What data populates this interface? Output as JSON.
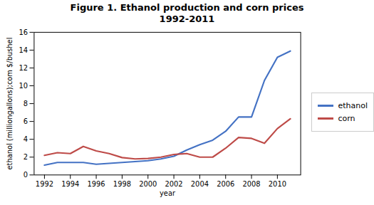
{
  "chart_data": {
    "type": "line",
    "title": "Figure 1. Ethanol production and corn prices",
    "subtitle": "1992-2011",
    "xlabel": "year",
    "ylabel": "ethanol (milliongallons);com $/bushel",
    "x": [
      1992,
      1993,
      1994,
      1995,
      1996,
      1997,
      1998,
      1999,
      2000,
      2001,
      2002,
      2003,
      2004,
      2005,
      2006,
      2007,
      2008,
      2009,
      2010,
      2011
    ],
    "series": [
      {
        "name": "ethanol",
        "color": "#4472C4",
        "values": [
          1.1,
          1.4,
          1.4,
          1.4,
          1.2,
          1.3,
          1.4,
          1.5,
          1.6,
          1.8,
          2.1,
          2.8,
          3.4,
          3.9,
          4.9,
          6.5,
          6.5,
          10.6,
          13.2,
          13.9
        ]
      },
      {
        "name": "corn",
        "color": "#BE4B48",
        "values": [
          2.2,
          2.5,
          2.4,
          3.2,
          2.7,
          2.4,
          1.95,
          1.8,
          1.85,
          2.0,
          2.3,
          2.4,
          2.0,
          2.0,
          3.0,
          4.2,
          4.1,
          3.55,
          5.2,
          6.3
        ]
      }
    ],
    "xlim": [
      1991.2,
      2011.8
    ],
    "xticks": [
      1992,
      1994,
      1996,
      1998,
      2000,
      2002,
      2004,
      2006,
      2008,
      2010
    ],
    "ylim": [
      0,
      16
    ],
    "yticks": [
      0,
      2,
      4,
      6,
      8,
      10,
      12,
      14,
      16
    ],
    "grid": false,
    "legend": "right"
  }
}
